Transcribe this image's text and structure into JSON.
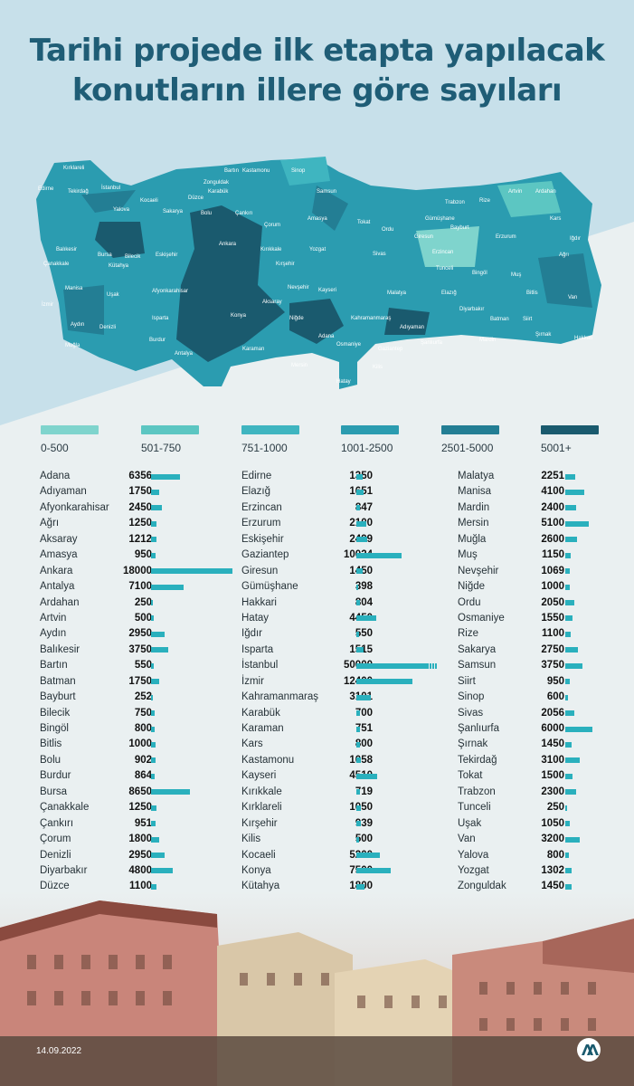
{
  "title": {
    "line1": "Tarihi projede ilk etapta yapılacak",
    "line2": "konutların illere göre sayıları"
  },
  "colors": {
    "bar": "#2ab0bd",
    "title": "#1f5d76",
    "scale": [
      "#7fd4cd",
      "#5cc6c2",
      "#3fb5c0",
      "#2b9cb0",
      "#237e94",
      "#1a5a6e"
    ]
  },
  "legend": [
    {
      "label": "0-500",
      "color": "#7fd4cd"
    },
    {
      "label": "501-750",
      "color": "#5cc6c2"
    },
    {
      "label": "751-1000",
      "color": "#3fb5c0"
    },
    {
      "label": "1001-2500",
      "color": "#2b9cb0"
    },
    {
      "label": "2501-5000",
      "color": "#237e94"
    },
    {
      "label": "5001+",
      "color": "#1a5a6e"
    }
  ],
  "map_labels": [
    "Kırklareli",
    "Edirne",
    "Tekirdağ",
    "İstanbul",
    "Kocaeli",
    "Yalova",
    "Sakarya",
    "Düzce",
    "Bartın",
    "Zonguldak",
    "Karabük",
    "Kastamonu",
    "Sinop",
    "Samsun",
    "Bolu",
    "Çankırı",
    "Çorum",
    "Amasya",
    "Tokat",
    "Ordu",
    "Giresun",
    "Trabzon",
    "Rize",
    "Artvin",
    "Ardahan",
    "Kars",
    "Gümüşhane",
    "Bayburt",
    "Erzurum",
    "Iğdır",
    "Ağrı",
    "Çanakkale",
    "Balıkesir",
    "Bursa",
    "Bilecik",
    "Eskişehir",
    "Ankara",
    "Kırıkkale",
    "Kırşehir",
    "Yozgat",
    "Sivas",
    "Erzincan",
    "Tunceli",
    "Bingöl",
    "Muş",
    "Van",
    "Kütahya",
    "Manisa",
    "Uşak",
    "Afyonkarahisar",
    "Nevşehir",
    "Kayseri",
    "Malatya",
    "Elazığ",
    "Bitlis",
    "İzmir",
    "Aydın",
    "Denizli",
    "Isparta",
    "Konya",
    "Aksaray",
    "Niğde",
    "Kahramanmaraş",
    "Adıyaman",
    "Diyarbakır",
    "Batman",
    "Siirt",
    "Şırnak",
    "Hakkari",
    "Muğla",
    "Burdur",
    "Antalya",
    "Karaman",
    "Mersin",
    "Adana",
    "Osmaniye",
    "Gaziantep",
    "Şanlıurfa",
    "Mardin",
    "Kilis",
    "Hatay"
  ],
  "chart_data": {
    "type": "bar",
    "categories": [
      "Adana",
      "Adıyaman",
      "Afyonkarahisar",
      "Ağrı",
      "Aksaray",
      "Amasya",
      "Ankara",
      "Antalya",
      "Ardahan",
      "Artvin",
      "Aydın",
      "Balıkesir",
      "Bartın",
      "Batman",
      "Bayburt",
      "Bilecik",
      "Bingöl",
      "Bitlis",
      "Bolu",
      "Burdur",
      "Bursa",
      "Çanakkale",
      "Çankırı",
      "Çorum",
      "Denizli",
      "Diyarbakır",
      "Düzce",
      "Edirne",
      "Elazığ",
      "Erzincan",
      "Erzurum",
      "Eskişehir",
      "Gaziantep",
      "Giresun",
      "Gümüşhane",
      "Hakkari",
      "Hatay",
      "Iğdır",
      "Isparta",
      "İstanbul",
      "İzmir",
      "Kahramanmaraş",
      "Karabük",
      "Karaman",
      "Kars",
      "Kastamonu",
      "Kayseri",
      "Kırıkkale",
      "Kırklareli",
      "Kırşehir",
      "Kilis",
      "Kocaeli",
      "Konya",
      "Kütahya",
      "Malatya",
      "Manisa",
      "Mardin",
      "Mersin",
      "Muğla",
      "Muş",
      "Nevşehir",
      "Niğde",
      "Ordu",
      "Osmaniye",
      "Rize",
      "Sakarya",
      "Samsun",
      "Siirt",
      "Sinop",
      "Sivas",
      "Şanlıurfa",
      "Şırnak",
      "Tekirdağ",
      "Tokat",
      "Trabzon",
      "Tunceli",
      "Uşak",
      "Van",
      "Yalova",
      "Yozgat",
      "Zonguldak"
    ],
    "values": [
      6356,
      1750,
      2450,
      1250,
      1212,
      950,
      18000,
      7100,
      250,
      500,
      2950,
      3750,
      550,
      1750,
      252,
      750,
      800,
      1000,
      902,
      864,
      8650,
      1250,
      951,
      1800,
      2950,
      4800,
      1100,
      1350,
      1651,
      847,
      2100,
      2499,
      10024,
      1450,
      398,
      804,
      4450,
      550,
      1515,
      50000,
      12400,
      3101,
      700,
      751,
      800,
      1058,
      4510,
      719,
      1050,
      939,
      500,
      5200,
      7500,
      1800,
      2251,
      4100,
      2400,
      5100,
      2600,
      1150,
      1069,
      1000,
      2050,
      1550,
      1100,
      2750,
      3750,
      950,
      600,
      2056,
      6000,
      1450,
      3100,
      1500,
      2300,
      250,
      1050,
      3200,
      800,
      1302,
      1450
    ]
  },
  "footer": {
    "date": "14.09.2022",
    "logo_text": "AA"
  }
}
